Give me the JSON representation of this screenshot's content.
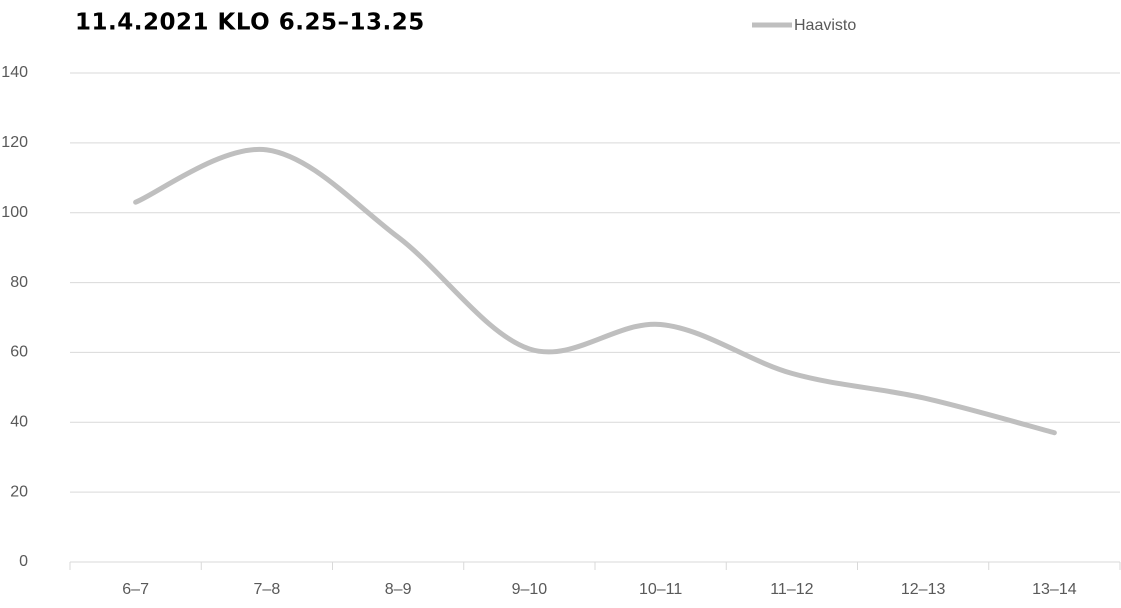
{
  "chart_data": {
    "type": "line",
    "title": "11.4.2021 KLO 6.25–13.25",
    "categories": [
      "6–7",
      "7–8",
      "8–9",
      "9–10",
      "10–11",
      "11–12",
      "12–13",
      "13–14"
    ],
    "series": [
      {
        "name": "Haavisto",
        "color": "#bfbfbf",
        "values": [
          103,
          118,
          93,
          61,
          68,
          54,
          47,
          37
        ]
      }
    ],
    "ylim": [
      0,
      140
    ],
    "yticks": [
      0,
      20,
      40,
      60,
      80,
      100,
      120,
      140
    ],
    "grid": true,
    "smooth": true,
    "legend": "top-right"
  }
}
